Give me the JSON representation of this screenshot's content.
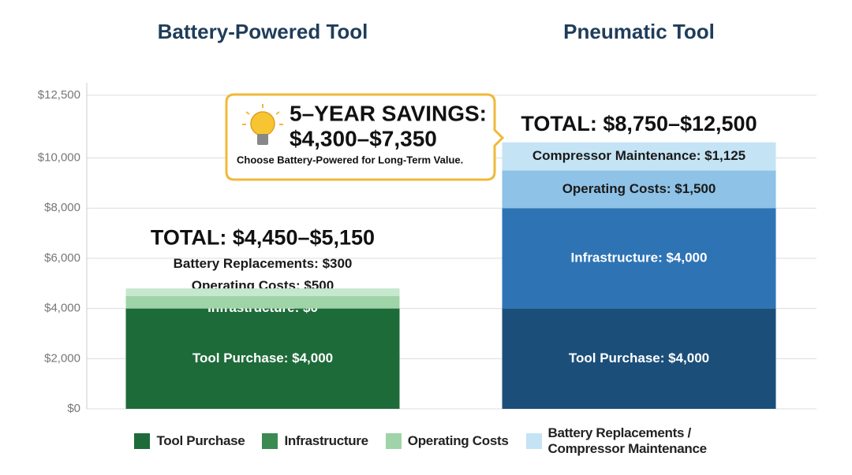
{
  "chart_data": {
    "type": "stacked_bar",
    "categories": [
      "Battery-Powered Tool",
      "Pneumatic Tool"
    ],
    "series": [
      {
        "name": "Tool Purchase",
        "color": "#1e6b3a",
        "colors": [
          "#1e6b3a",
          "#1b4f7a"
        ],
        "values": [
          4000,
          4000
        ],
        "value_labels": [
          "Tool Purchase: $4,000",
          "Tool Purchase: $4,000"
        ]
      },
      {
        "name": "Infrastructure",
        "color": "#3a8a52",
        "colors": [
          "#3a8a52",
          "#2e74b5"
        ],
        "values": [
          0,
          4000
        ],
        "value_labels": [
          "Infrastructure: $0",
          "Infrastructure: $4,000"
        ]
      },
      {
        "name": "Operating Costs",
        "color": "#9fd4a8",
        "colors": [
          "#9fd4a8",
          "#8ec2e6"
        ],
        "values": [
          500,
          1500
        ],
        "value_labels": [
          "Operating Costs: $500",
          "Operating Costs: $1,500"
        ]
      },
      {
        "name": "Battery Replacements / Compressor Maintenance",
        "color": "#c4e4f5",
        "colors": [
          "#c5e8cf",
          "#c4e4f5"
        ],
        "values": [
          300,
          1125
        ],
        "value_labels": [
          "Battery Replacements: $300",
          "Compressor Maintenance: $1,125"
        ]
      }
    ],
    "totals": [
      "TOTAL: $4,450–$5,150",
      "TOTAL: $8,750–$12,500"
    ],
    "callout": {
      "title": "5–YEAR SAVINGS:",
      "value": "$4,300–$7,350",
      "note": "Choose Battery-Powered for Long-Term Value."
    },
    "ylim": [
      0,
      13000
    ],
    "yticks": [
      {
        "value": 0,
        "label": "$0"
      },
      {
        "value": 2000,
        "label": "$2,000"
      },
      {
        "value": 4000,
        "label": "$4,000"
      },
      {
        "value": 6000,
        "label": "$6,000"
      },
      {
        "value": 8000,
        "label": "$8,000"
      },
      {
        "value": 10000,
        "label": "$10,000"
      },
      {
        "value": 12500,
        "label": "$12,500"
      }
    ],
    "grid": true
  }
}
